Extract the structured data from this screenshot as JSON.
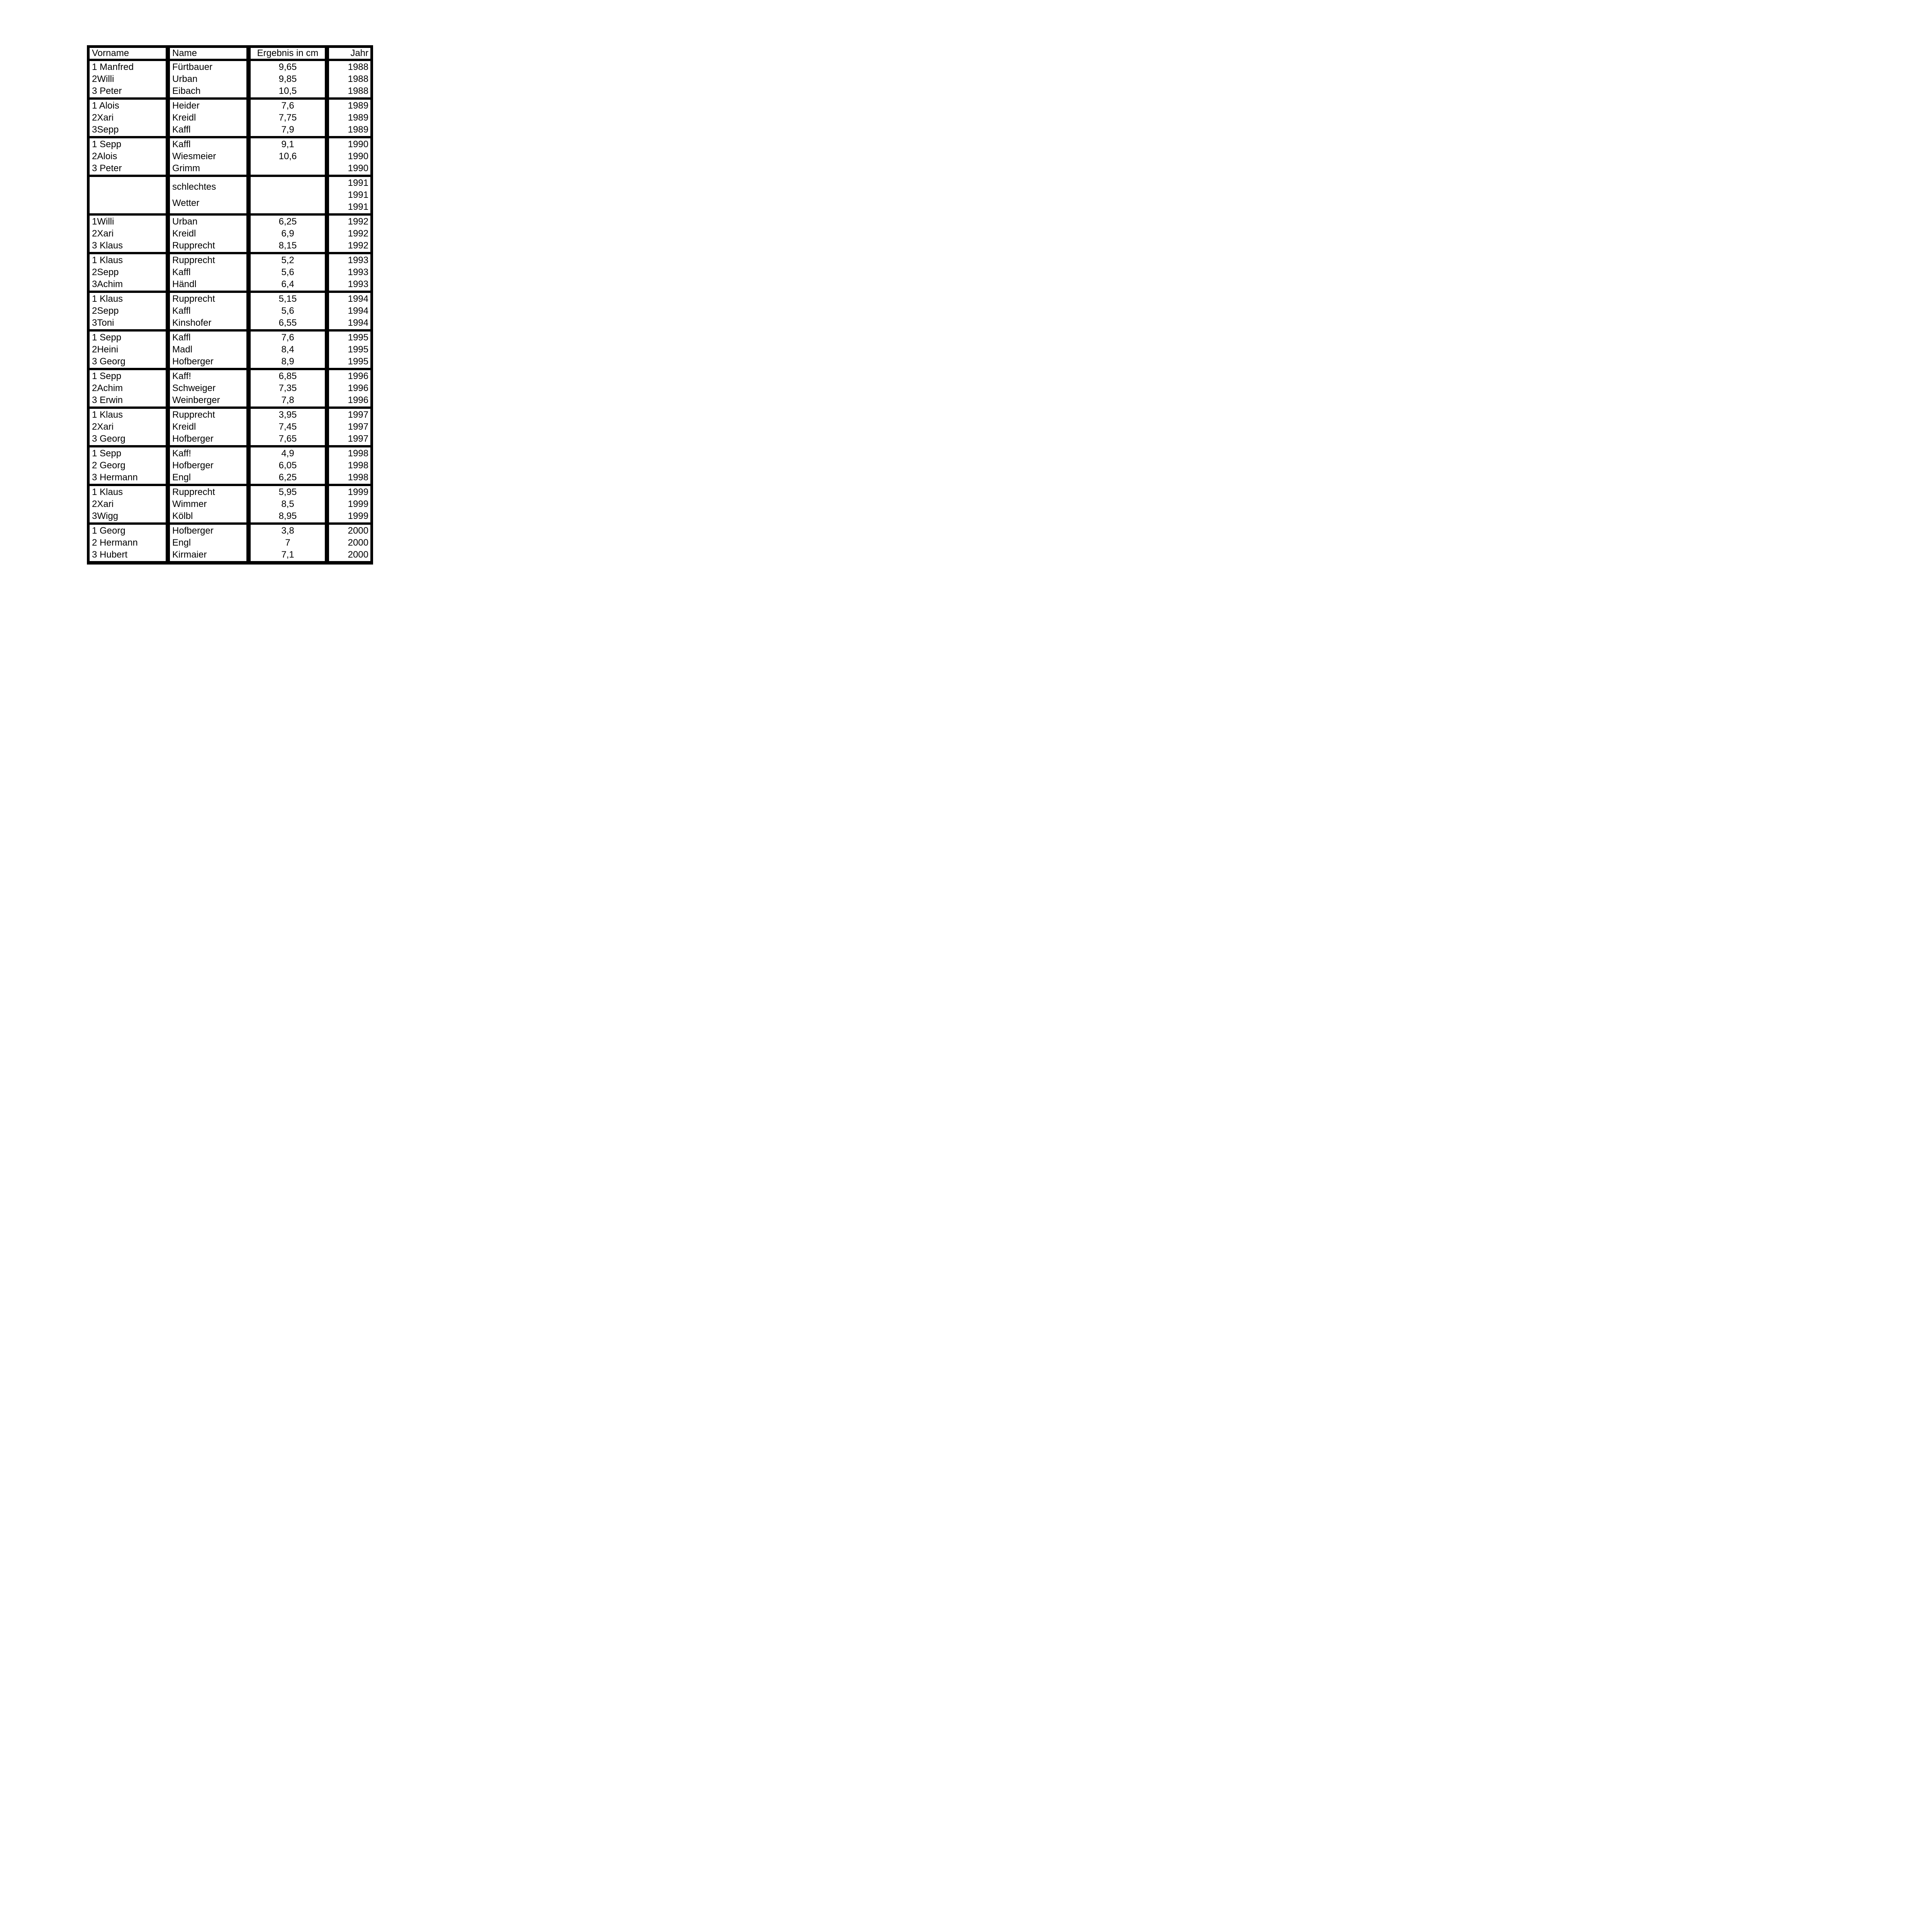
{
  "table": {
    "headers": {
      "vorname": "Vorname",
      "name": "Name",
      "ergebnis": "Ergebnis in cm",
      "jahr": "Jahr"
    },
    "weather_note": {
      "line1": "schlechtes",
      "line2": "Wetter"
    },
    "groups": [
      {
        "year": "1988",
        "rows": [
          {
            "v": "1 Manfred",
            "n": "Fürtbauer",
            "e": "9,65",
            "j": "1988"
          },
          {
            "v": "2Willi",
            "n": "Urban",
            "e": "9,85",
            "j": "1988"
          },
          {
            "v": "3 Peter",
            "n": "Eibach",
            "e": "10,5",
            "j": "1988"
          }
        ]
      },
      {
        "year": "1989",
        "rows": [
          {
            "v": "1 Alois",
            "n": "Heider",
            "e": "7,6",
            "j": "1989"
          },
          {
            "v": "2Xari",
            "n": "Kreidl",
            "e": "7,75",
            "j": "1989"
          },
          {
            "v": "3Sepp",
            "n": "Kaffl",
            "e": "7,9",
            "j": "1989"
          }
        ]
      },
      {
        "year": "1990",
        "rows": [
          {
            "v": "1 Sepp",
            "n": "Kaffl",
            "e": "9,1",
            "j": "1990"
          },
          {
            "v": "2Alois",
            "n": "Wiesmeier",
            "e": "10,6",
            "j": "1990"
          },
          {
            "v": "3 Peter",
            "n": "Grimm",
            "e": "",
            "j": "1990"
          }
        ]
      },
      {
        "year": "1991",
        "rows": [
          {
            "v": "",
            "n": "",
            "e": "",
            "j": "1991"
          },
          {
            "v": "",
            "n": "",
            "e": "",
            "j": "1991"
          },
          {
            "v": "",
            "n": "",
            "e": "",
            "j": "1991"
          }
        ]
      },
      {
        "year": "1992",
        "rows": [
          {
            "v": "1Willi",
            "n": "Urban",
            "e": "6,25",
            "j": "1992"
          },
          {
            "v": "2Xari",
            "n": "Kreidl",
            "e": "6,9",
            "j": "1992"
          },
          {
            "v": "3 Klaus",
            "n": "Rupprecht",
            "e": "8,15",
            "j": "1992"
          }
        ]
      },
      {
        "year": "1993",
        "rows": [
          {
            "v": "1 Klaus",
            "n": "Rupprecht",
            "e": "5,2",
            "j": "1993"
          },
          {
            "v": "2Sepp",
            "n": "Kaffl",
            "e": "5,6",
            "j": "1993"
          },
          {
            "v": "3Achim",
            "n": "Händl",
            "e": "6,4",
            "j": "1993"
          }
        ]
      },
      {
        "year": "1994",
        "rows": [
          {
            "v": "1 Klaus",
            "n": "Rupprecht",
            "e": "5,15",
            "j": "1994"
          },
          {
            "v": "2Sepp",
            "n": "Kaffl",
            "e": "5,6",
            "j": "1994"
          },
          {
            "v": "3Toni",
            "n": "Kinshofer",
            "e": "6,55",
            "j": "1994"
          }
        ]
      },
      {
        "year": "1995",
        "rows": [
          {
            "v": "1 Sepp",
            "n": "Kaffl",
            "e": "7,6",
            "j": "1995"
          },
          {
            "v": "2Heini",
            "n": "Madl",
            "e": "8,4",
            "j": "1995"
          },
          {
            "v": "3 Georg",
            "n": "Hofberger",
            "e": "8,9",
            "j": "1995"
          }
        ]
      },
      {
        "year": "1996",
        "rows": [
          {
            "v": "1 Sepp",
            "n": "Kaff!",
            "e": "6,85",
            "j": "1996"
          },
          {
            "v": "2Achim",
            "n": "Schweiger",
            "e": "7,35",
            "j": "1996"
          },
          {
            "v": "3 Erwin",
            "n": "Weinberger",
            "e": "7,8",
            "j": "1996"
          }
        ]
      },
      {
        "year": "1997",
        "rows": [
          {
            "v": "1 Klaus",
            "n": "Rupprecht",
            "e": "3,95",
            "j": "1997"
          },
          {
            "v": "2Xari",
            "n": "Kreidl",
            "e": "7,45",
            "j": "1997"
          },
          {
            "v": "3 Georg",
            "n": "Hofberger",
            "e": "7,65",
            "j": "1997"
          }
        ]
      },
      {
        "year": "1998",
        "rows": [
          {
            "v": "1 Sepp",
            "n": "Kaff!",
            "e": "4,9",
            "j": "1998"
          },
          {
            "v": "2 Georg",
            "n": "Hofberger",
            "e": "6,05",
            "j": "1998"
          },
          {
            "v": "3 Hermann",
            "n": "Engl",
            "e": "6,25",
            "j": "1998"
          }
        ]
      },
      {
        "year": "1999",
        "rows": [
          {
            "v": "1 Klaus",
            "n": "Rupprecht",
            "e": "5,95",
            "j": "1999"
          },
          {
            "v": "2Xari",
            "n": "Wimmer",
            "e": "8,5",
            "j": "1999"
          },
          {
            "v": "3Wigg",
            "n": "Kölbl",
            "e": "8,95",
            "j": "1999"
          }
        ]
      },
      {
        "year": "2000",
        "rows": [
          {
            "v": "1 Georg",
            "n": "Hofberger",
            "e": "3,8",
            "j": "2000"
          },
          {
            "v": "2 Hermann",
            "n": "Engl",
            "e": "7",
            "j": "2000"
          },
          {
            "v": "3 Hubert",
            "n": "Kirmaier",
            "e": "7,1",
            "j": "2000"
          }
        ]
      }
    ]
  }
}
